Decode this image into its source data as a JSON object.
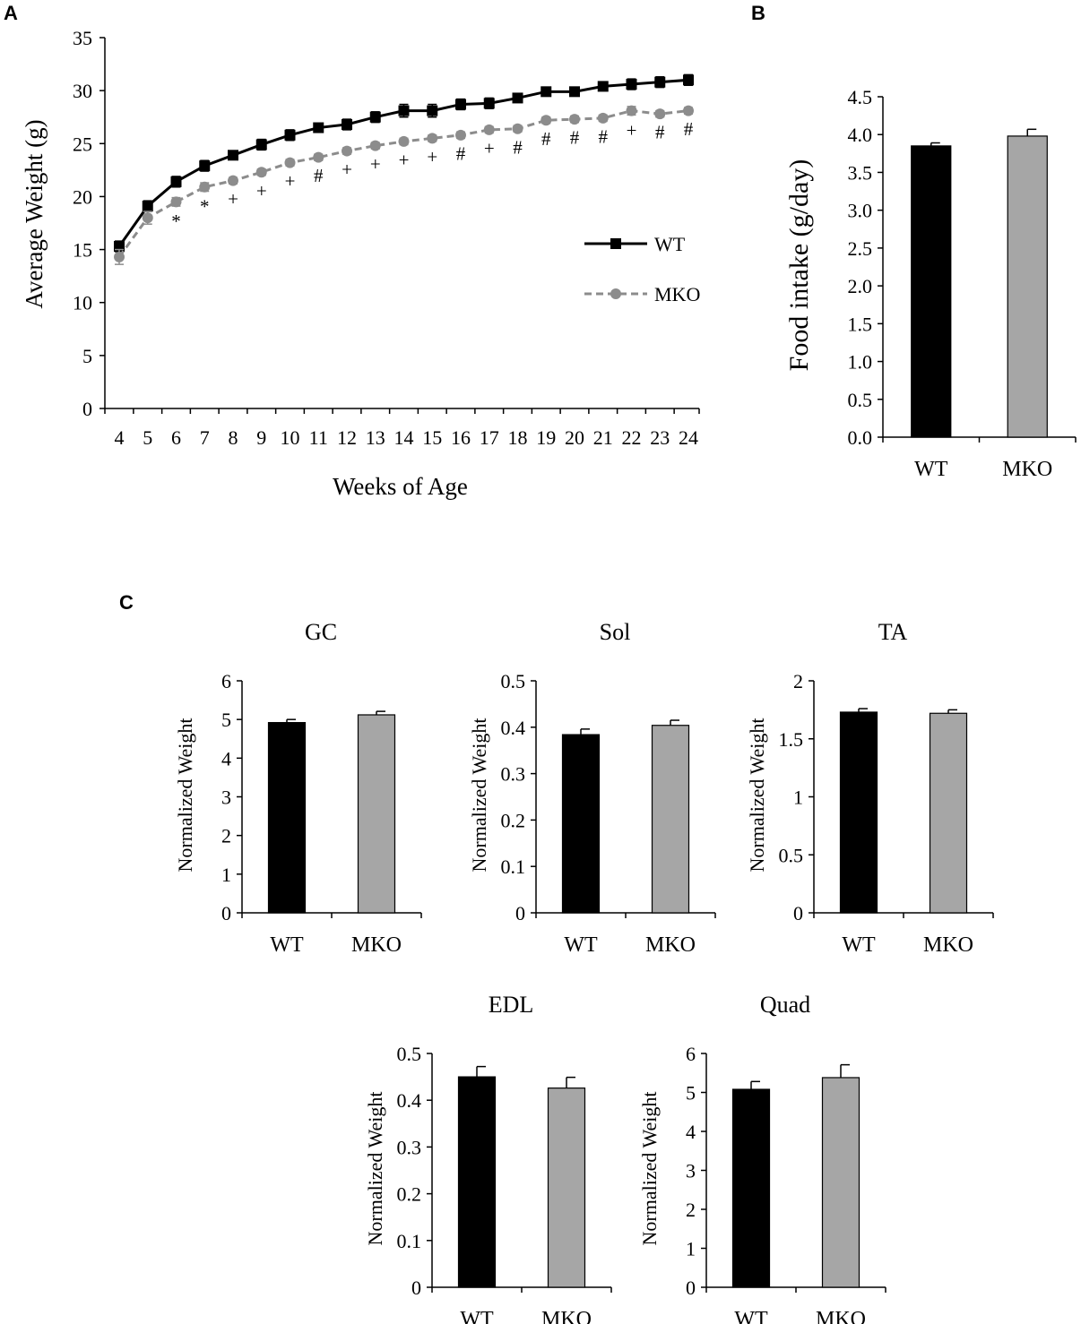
{
  "panel_labels": {
    "a": "A",
    "b": "B",
    "c": "C"
  },
  "chart_data": [
    {
      "id": "A",
      "type": "line",
      "title": "",
      "xlabel": "Weeks of Age",
      "ylabel": "Average Weight (g)",
      "ylim": [
        0,
        35
      ],
      "yticks": [
        "0",
        "5",
        "10",
        "15",
        "20",
        "25",
        "30",
        "35"
      ],
      "categories": [
        "4",
        "5",
        "6",
        "7",
        "8",
        "9",
        "10",
        "11",
        "12",
        "13",
        "14",
        "15",
        "16",
        "17",
        "18",
        "19",
        "20",
        "21",
        "22",
        "23",
        "24"
      ],
      "series": [
        {
          "name": "WT",
          "color": "#000000",
          "style": "solid",
          "marker": "square",
          "values": [
            15.3,
            19.1,
            21.4,
            22.9,
            23.9,
            24.9,
            25.8,
            26.5,
            26.8,
            27.5,
            28.1,
            28.1,
            28.7,
            28.8,
            29.3,
            29.9,
            29.9,
            30.4,
            30.6,
            30.8,
            31.0
          ],
          "errors": [
            0.5,
            0.5,
            0.5,
            0.5,
            0.4,
            0.5,
            0.5,
            0.4,
            0.5,
            0.5,
            0.6,
            0.6,
            0.5,
            0.5,
            0.4,
            0.4,
            0.4,
            0.4,
            0.5,
            0.5,
            0.5
          ]
        },
        {
          "name": "MKO",
          "color": "#8c8c8c",
          "style": "dashed",
          "marker": "circle",
          "values": [
            14.3,
            18.0,
            19.5,
            20.9,
            21.5,
            22.3,
            23.2,
            23.7,
            24.3,
            24.8,
            25.2,
            25.5,
            25.8,
            26.3,
            26.4,
            27.2,
            27.3,
            27.4,
            28.1,
            27.8,
            28.1
          ],
          "errors": [
            0.7,
            0.6,
            0.4,
            0.4,
            0.3,
            0.3,
            0.3,
            0.3,
            0.3,
            0.3,
            0.3,
            0.3,
            0.3,
            0.3,
            0.3,
            0.3,
            0.3,
            0.3,
            0.4,
            0.3,
            0.3
          ]
        }
      ],
      "annotations": [
        "",
        "",
        "*",
        "*",
        "+",
        "+",
        "+",
        "#",
        "+",
        "+",
        "+",
        "+",
        "#",
        "+",
        "#",
        "#",
        "#",
        "#",
        "+",
        "#",
        "#"
      ],
      "legend": {
        "position": "right",
        "entries": [
          "WT",
          "MKO"
        ]
      }
    },
    {
      "id": "B",
      "type": "bar",
      "title": "",
      "ylabel": "Food intake (g/day)",
      "ylim": [
        0,
        4.5
      ],
      "yticks": [
        "0.0",
        "0.5",
        "1.0",
        "1.5",
        "2.0",
        "2.5",
        "3.0",
        "3.5",
        "4.0",
        "4.5"
      ],
      "categories": [
        "WT",
        "MKO"
      ],
      "values": [
        3.85,
        3.98
      ],
      "errors": [
        0.04,
        0.09
      ],
      "colors": [
        "#000000",
        "#a6a6a6"
      ]
    },
    {
      "id": "GC",
      "type": "bar",
      "title": "GC",
      "ylabel": "Normalized Weight",
      "ylim": [
        0,
        6
      ],
      "yticks": [
        "0",
        "1",
        "2",
        "3",
        "4",
        "5",
        "6"
      ],
      "categories": [
        "WT",
        "MKO"
      ],
      "values": [
        4.92,
        5.12
      ],
      "errors": [
        0.08,
        0.09
      ],
      "colors": [
        "#000000",
        "#a6a6a6"
      ]
    },
    {
      "id": "Sol",
      "type": "bar",
      "title": "Sol",
      "ylabel": "Normalized Weight",
      "ylim": [
        0,
        0.5
      ],
      "yticks": [
        "0",
        "0.1",
        "0.2",
        "0.3",
        "0.4",
        "0.5"
      ],
      "categories": [
        "WT",
        "MKO"
      ],
      "values": [
        0.384,
        0.404
      ],
      "errors": [
        0.012,
        0.011
      ],
      "colors": [
        "#000000",
        "#a6a6a6"
      ]
    },
    {
      "id": "TA",
      "type": "bar",
      "title": "TA",
      "ylabel": "Normalized Weight",
      "ylim": [
        0,
        2
      ],
      "yticks": [
        "0",
        "0.5",
        "1",
        "1.5",
        "2"
      ],
      "categories": [
        "WT",
        "MKO"
      ],
      "values": [
        1.73,
        1.72
      ],
      "errors": [
        0.03,
        0.03
      ],
      "colors": [
        "#000000",
        "#a6a6a6"
      ]
    },
    {
      "id": "EDL",
      "type": "bar",
      "title": "EDL",
      "ylabel": "Normalized Weight",
      "ylim": [
        0,
        0.5
      ],
      "yticks": [
        "0",
        "0.1",
        "0.2",
        "0.3",
        "0.4",
        "0.5"
      ],
      "categories": [
        "WT",
        "MKO"
      ],
      "values": [
        0.45,
        0.426
      ],
      "errors": [
        0.022,
        0.023
      ],
      "colors": [
        "#000000",
        "#a6a6a6"
      ]
    },
    {
      "id": "Quad",
      "type": "bar",
      "title": "Quad",
      "ylabel": "Normalized Weight",
      "ylim": [
        0,
        6
      ],
      "yticks": [
        "0",
        "1",
        "2",
        "3",
        "4",
        "5",
        "6"
      ],
      "categories": [
        "WT",
        "MKO"
      ],
      "values": [
        5.08,
        5.38
      ],
      "errors": [
        0.2,
        0.33
      ],
      "colors": [
        "#000000",
        "#a6a6a6"
      ]
    }
  ]
}
